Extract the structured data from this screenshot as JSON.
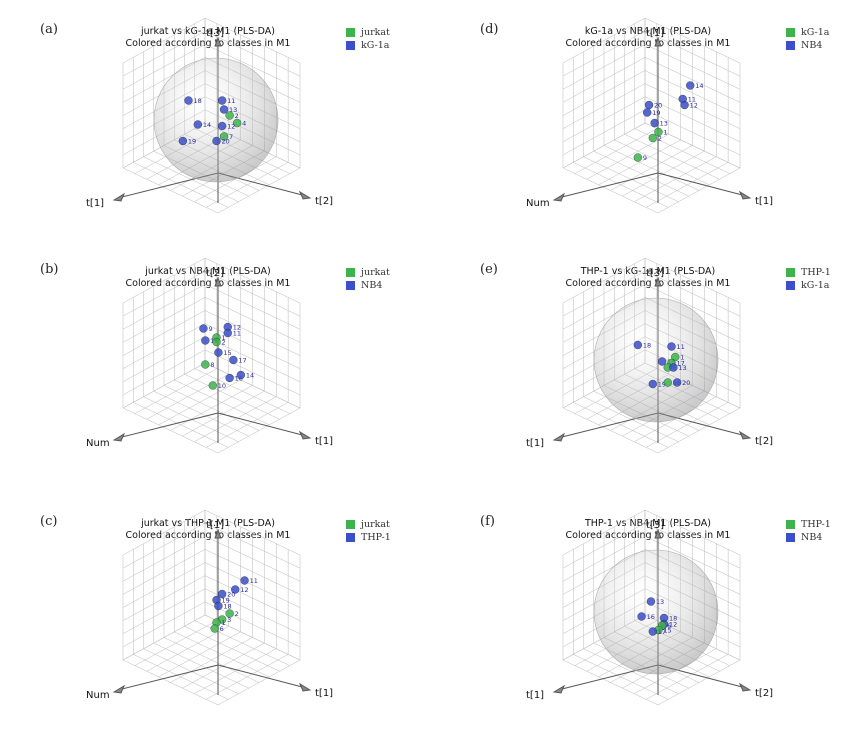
{
  "colors": {
    "green": "#3cb44b",
    "blue": "#3a4fc9",
    "grid": "#b9b9b9"
  },
  "chart_data": [
    {
      "id": "a",
      "type": "scatter",
      "panel_label": "(a)",
      "title": "jurkat vs kG-1a.M1 (PLS-DA)",
      "subtitle": "Colored according to classes in M1",
      "axes": {
        "vertical": "t[3]",
        "left": "t[1]",
        "right": "t[2]"
      },
      "ellipsoid": true,
      "legend": [
        {
          "name": "jurkat",
          "color": "#3cb44b"
        },
        {
          "name": "kG-1a",
          "color": "#3a4fc9"
        }
      ],
      "points": [
        {
          "label": "18",
          "cls": "kG-1a",
          "u": 0.27,
          "v": 0.35
        },
        {
          "label": "11",
          "cls": "kG-1a",
          "u": 0.45,
          "v": 0.35
        },
        {
          "label": "13",
          "cls": "kG-1a",
          "u": 0.46,
          "v": 0.41
        },
        {
          "label": "2",
          "cls": "jurkat",
          "u": 0.49,
          "v": 0.45
        },
        {
          "label": "4",
          "cls": "jurkat",
          "u": 0.53,
          "v": 0.5
        },
        {
          "label": "14",
          "cls": "kG-1a",
          "u": 0.32,
          "v": 0.51
        },
        {
          "label": "12",
          "cls": "kG-1a",
          "u": 0.45,
          "v": 0.52
        },
        {
          "label": "7",
          "cls": "jurkat",
          "u": 0.46,
          "v": 0.59
        },
        {
          "label": "19",
          "cls": "kG-1a",
          "u": 0.24,
          "v": 0.62
        },
        {
          "label": "20",
          "cls": "kG-1a",
          "u": 0.42,
          "v": 0.62
        }
      ]
    },
    {
      "id": "d",
      "type": "scatter",
      "panel_label": "(d)",
      "title": "kG-1a vs NB4.M1 (PLS-DA)",
      "subtitle": "Colored according to classes in M1",
      "axes": {
        "vertical": "t[1]",
        "left": "Num",
        "right": "t[1]"
      },
      "ellipsoid": false,
      "legend": [
        {
          "name": "kG-1a",
          "color": "#3cb44b"
        },
        {
          "name": "NB4",
          "color": "#3a4fc9"
        }
      ],
      "points": [
        {
          "label": "14",
          "cls": "NB4",
          "u": 0.6,
          "v": 0.25
        },
        {
          "label": "11",
          "cls": "NB4",
          "u": 0.56,
          "v": 0.34
        },
        {
          "label": "12",
          "cls": "NB4",
          "u": 0.57,
          "v": 0.38
        },
        {
          "label": "20",
          "cls": "NB4",
          "u": 0.38,
          "v": 0.38
        },
        {
          "label": "19",
          "cls": "NB4",
          "u": 0.37,
          "v": 0.43
        },
        {
          "label": "13",
          "cls": "NB4",
          "u": 0.41,
          "v": 0.5
        },
        {
          "label": "1",
          "cls": "kG-1a",
          "u": 0.43,
          "v": 0.56
        },
        {
          "label": "2",
          "cls": "kG-1a",
          "u": 0.4,
          "v": 0.6
        },
        {
          "label": "9",
          "cls": "kG-1a",
          "u": 0.32,
          "v": 0.73
        }
      ]
    },
    {
      "id": "b",
      "type": "scatter",
      "panel_label": "(b)",
      "title": "jurkat vs NB4.M1 (PLS-DA)",
      "subtitle": "Colored according to classes in M1",
      "axes": {
        "vertical": "t[2]",
        "left": "Num",
        "right": "t[1]"
      },
      "ellipsoid": false,
      "legend": [
        {
          "name": "jurkat",
          "color": "#3cb44b"
        },
        {
          "name": "NB4",
          "color": "#3a4fc9"
        }
      ],
      "points": [
        {
          "label": "9",
          "cls": "NB4",
          "u": 0.35,
          "v": 0.27
        },
        {
          "label": "12",
          "cls": "NB4",
          "u": 0.48,
          "v": 0.26
        },
        {
          "label": "11",
          "cls": "NB4",
          "u": 0.48,
          "v": 0.3
        },
        {
          "label": "1",
          "cls": "jurkat",
          "u": 0.42,
          "v": 0.33
        },
        {
          "label": "18",
          "cls": "NB4",
          "u": 0.36,
          "v": 0.35
        },
        {
          "label": "2",
          "cls": "jurkat",
          "u": 0.42,
          "v": 0.36
        },
        {
          "label": "15",
          "cls": "NB4",
          "u": 0.43,
          "v": 0.43
        },
        {
          "label": "17",
          "cls": "NB4",
          "u": 0.51,
          "v": 0.48
        },
        {
          "label": "8",
          "cls": "jurkat",
          "u": 0.36,
          "v": 0.51
        },
        {
          "label": "16",
          "cls": "NB4",
          "u": 0.49,
          "v": 0.6
        },
        {
          "label": "14",
          "cls": "NB4",
          "u": 0.55,
          "v": 0.58
        },
        {
          "label": "10",
          "cls": "jurkat",
          "u": 0.4,
          "v": 0.65
        }
      ]
    },
    {
      "id": "e",
      "type": "scatter",
      "panel_label": "(e)",
      "title": "THP-1 vs kG-1a.M1 (PLS-DA)",
      "subtitle": "Colored according to classes in M1",
      "axes": {
        "vertical": "t[3]",
        "left": "t[1]",
        "right": "t[2]"
      },
      "ellipsoid": true,
      "legend": [
        {
          "name": "THP-1",
          "color": "#3cb44b"
        },
        {
          "name": "kG-1a",
          "color": "#3a4fc9"
        }
      ],
      "points": [
        {
          "label": "18",
          "cls": "kG-1a",
          "u": 0.32,
          "v": 0.38
        },
        {
          "label": "11",
          "cls": "kG-1a",
          "u": 0.5,
          "v": 0.39
        },
        {
          "label": "1",
          "cls": "THP-1",
          "u": 0.52,
          "v": 0.46
        },
        {
          "label": "15",
          "cls": "kG-1a",
          "u": 0.45,
          "v": 0.49
        },
        {
          "label": "17",
          "cls": "THP-1",
          "u": 0.5,
          "v": 0.5
        },
        {
          "label": "6",
          "cls": "THP-1",
          "u": 0.48,
          "v": 0.53
        },
        {
          "label": "13",
          "cls": "kG-1a",
          "u": 0.51,
          "v": 0.53
        },
        {
          "label": "19",
          "cls": "kG-1a",
          "u": 0.4,
          "v": 0.64
        },
        {
          "label": "16",
          "cls": "THP-1",
          "u": 0.48,
          "v": 0.63
        },
        {
          "label": "20",
          "cls": "kG-1a",
          "u": 0.53,
          "v": 0.63
        }
      ]
    },
    {
      "id": "c",
      "type": "scatter",
      "panel_label": "(c)",
      "title": "jurkat vs THP-1.M1 (PLS-DA)",
      "subtitle": "Colored according to classes in M1",
      "axes": {
        "vertical": "t[1]",
        "left": "Num",
        "right": "t[1]"
      },
      "ellipsoid": false,
      "legend": [
        {
          "name": "jurkat",
          "color": "#3cb44b"
        },
        {
          "name": "THP-1",
          "color": "#3a4fc9"
        }
      ],
      "points": [
        {
          "label": "11",
          "cls": "THP-1",
          "u": 0.57,
          "v": 0.27
        },
        {
          "label": "12",
          "cls": "THP-1",
          "u": 0.52,
          "v": 0.33
        },
        {
          "label": "20",
          "cls": "THP-1",
          "u": 0.45,
          "v": 0.36
        },
        {
          "label": "19",
          "cls": "THP-1",
          "u": 0.42,
          "v": 0.4
        },
        {
          "label": "18",
          "cls": "THP-1",
          "u": 0.43,
          "v": 0.44
        },
        {
          "label": "2",
          "cls": "jurkat",
          "u": 0.49,
          "v": 0.49
        },
        {
          "label": "3",
          "cls": "jurkat",
          "u": 0.45,
          "v": 0.53
        },
        {
          "label": "1",
          "cls": "jurkat",
          "u": 0.42,
          "v": 0.55
        },
        {
          "label": "6",
          "cls": "jurkat",
          "u": 0.41,
          "v": 0.59
        }
      ]
    },
    {
      "id": "f",
      "type": "scatter",
      "panel_label": "(f)",
      "title": "THP-1 vs NB4.M1 (PLS-DA)",
      "subtitle": "Colored according to classes in M1",
      "axes": {
        "vertical": "t[3]",
        "left": "t[1]",
        "right": "t[2]"
      },
      "ellipsoid": true,
      "legend": [
        {
          "name": "THP-1",
          "color": "#3cb44b"
        },
        {
          "name": "NB4",
          "color": "#3a4fc9"
        }
      ],
      "points": [
        {
          "label": "13",
          "cls": "NB4",
          "u": 0.39,
          "v": 0.41
        },
        {
          "label": "16",
          "cls": "NB4",
          "u": 0.34,
          "v": 0.51
        },
        {
          "label": "18",
          "cls": "NB4",
          "u": 0.46,
          "v": 0.52
        },
        {
          "label": "12",
          "cls": "NB4",
          "u": 0.46,
          "v": 0.56
        },
        {
          "label": "6",
          "cls": "THP-1",
          "u": 0.45,
          "v": 0.57
        },
        {
          "label": "15",
          "cls": "THP-1",
          "u": 0.43,
          "v": 0.6
        },
        {
          "label": "17",
          "cls": "NB4",
          "u": 0.4,
          "v": 0.61
        }
      ]
    }
  ]
}
